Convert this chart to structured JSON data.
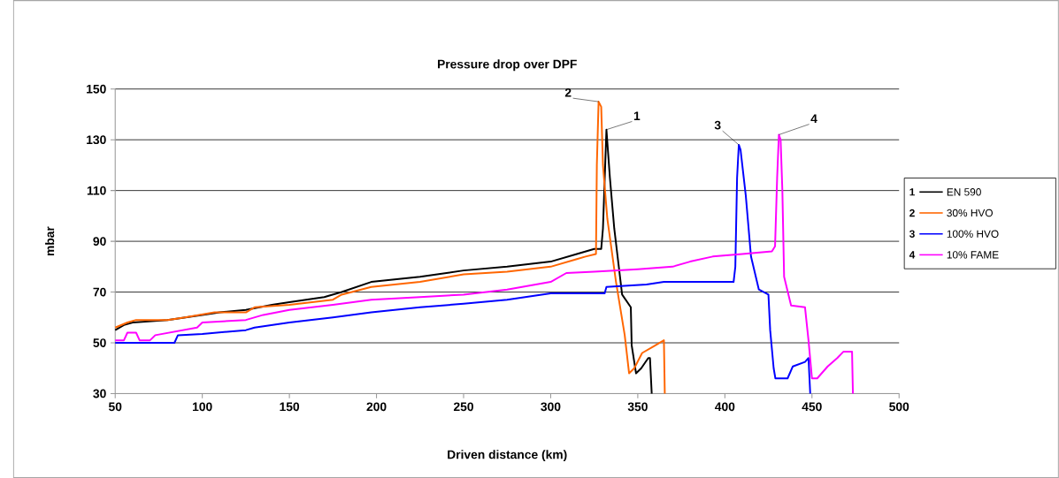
{
  "chart_data": {
    "type": "line",
    "title": "Pressure drop over DPF",
    "xlabel": "Driven distance (km)",
    "ylabel": "mbar",
    "xlim": [
      50,
      500
    ],
    "xticks": [
      50,
      100,
      150,
      200,
      250,
      300,
      350,
      400,
      450,
      500
    ],
    "ylim": [
      30,
      150
    ],
    "yticks": [
      30,
      50,
      70,
      90,
      110,
      130,
      150
    ],
    "grid": "y",
    "legend": "right",
    "marker": "none",
    "line_style": "solid",
    "series": [
      {
        "name": "EN 590",
        "color": "#000000",
        "x": [
          50,
          55,
          60,
          80,
          100,
          110,
          125,
          140,
          150,
          170,
          180,
          197,
          225,
          250,
          275,
          300,
          315,
          325,
          329,
          330,
          332,
          334,
          336.5,
          341,
          346,
          346.5,
          349,
          352,
          356,
          357,
          358
        ],
        "values": [
          55,
          57,
          58,
          59,
          61,
          62,
          63,
          65,
          66,
          68,
          70,
          74,
          76,
          78.5,
          80,
          82,
          85,
          87,
          87,
          95,
          134,
          115,
          95,
          69,
          64,
          49,
          38,
          40,
          44,
          44,
          30
        ]
      },
      {
        "name": "30% HVO",
        "color": "#ff6600",
        "x": [
          50,
          57,
          62,
          80,
          90,
          107,
          125,
          130,
          150,
          175,
          180,
          197,
          225,
          250,
          275,
          300,
          315,
          320,
          326,
          326.5,
          327.5,
          329,
          330,
          332.5,
          337.5,
          342.5,
          345,
          348,
          352.5,
          359,
          365,
          365.5
        ],
        "values": [
          56,
          58,
          59,
          59,
          60,
          62,
          62,
          64,
          65,
          67,
          69,
          72,
          74,
          77,
          78,
          80,
          83,
          84,
          85,
          120,
          145,
          143,
          120,
          99,
          74,
          53,
          38,
          40,
          46,
          48.6,
          51,
          30
        ]
      },
      {
        "name": "100% HVO",
        "color": "#0000ff",
        "x": [
          50,
          60,
          84,
          86,
          100,
          125,
          130,
          150,
          175,
          197,
          225,
          250,
          275,
          300,
          325,
          331,
          332,
          355,
          365,
          405,
          406,
          407,
          408,
          409,
          412,
          415,
          419.5,
          425,
          426,
          428,
          429,
          436,
          439,
          446,
          448,
          449
        ],
        "values": [
          50,
          50,
          50,
          53,
          53.5,
          55,
          56,
          58,
          60,
          62,
          64,
          65.4,
          67,
          69.5,
          69.5,
          69.5,
          72,
          73,
          74,
          74,
          80,
          115,
          128,
          126,
          108,
          84,
          71,
          69,
          55,
          40,
          36,
          36,
          40.7,
          42.5,
          44,
          30
        ]
      },
      {
        "name": "10% FAME",
        "color": "#ff00ff",
        "x": [
          50,
          55,
          57,
          62,
          64,
          70,
          73,
          97,
          100,
          125,
          135,
          150,
          175,
          197,
          225,
          250,
          275,
          300,
          309,
          325,
          350,
          370,
          380,
          393,
          410,
          427,
          428.8,
          430,
          431,
          432,
          433,
          434,
          438,
          446,
          448,
          450,
          453,
          459,
          464.5,
          468,
          473,
          473.5
        ],
        "values": [
          51,
          51,
          54,
          54,
          51,
          51,
          53,
          56,
          58,
          59,
          61,
          63,
          65,
          67,
          68,
          69,
          71,
          74,
          77.5,
          78,
          79,
          80,
          82,
          84,
          85,
          86,
          88,
          115,
          132,
          130,
          110,
          76,
          64.7,
          64,
          51,
          36,
          36,
          40.7,
          44,
          46.5,
          46.5,
          30
        ]
      }
    ],
    "annotations": [
      {
        "text": "1",
        "x": 332,
        "y": 134
      },
      {
        "text": "2",
        "x": 327.5,
        "y": 145
      },
      {
        "text": "3",
        "x": 408,
        "y": 128
      },
      {
        "text": "4",
        "x": 431,
        "y": 132
      }
    ]
  }
}
